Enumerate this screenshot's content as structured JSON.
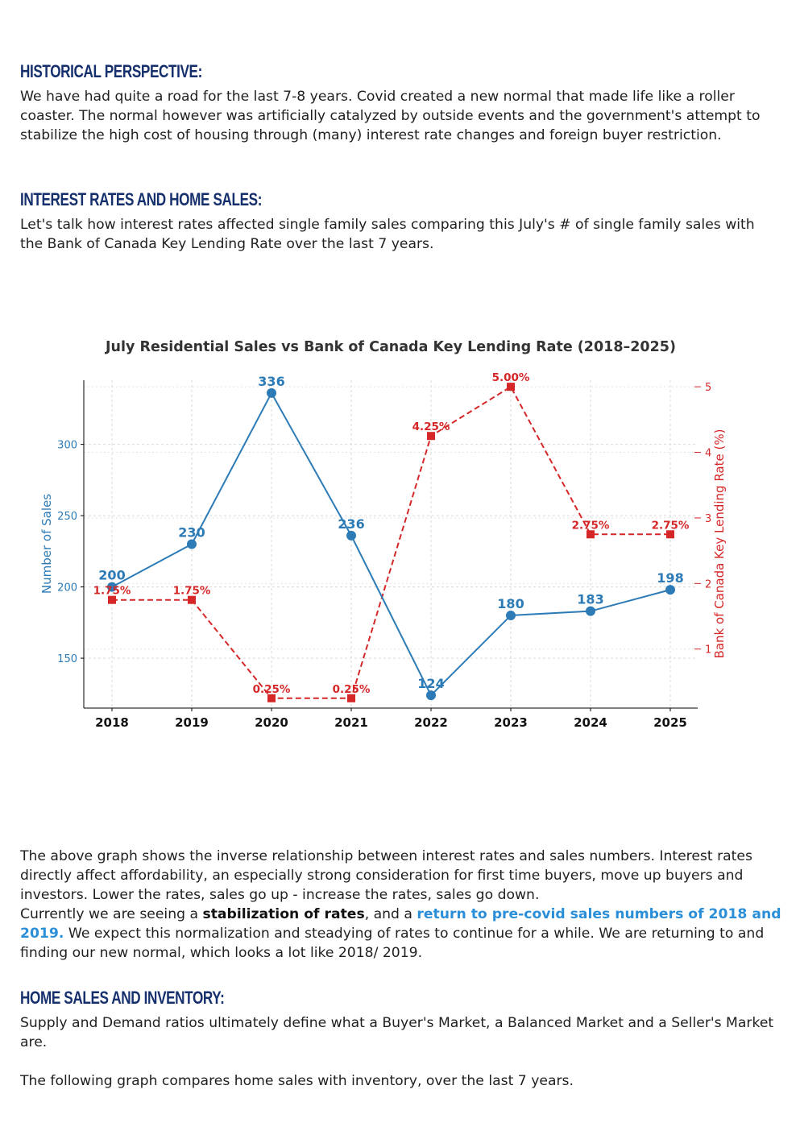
{
  "sections": {
    "historical": {
      "heading": "Historical Perspective:",
      "body": "We have had quite a road for the last 7-8 years. Covid created a new normal that made life like a roller coaster. The normal however was artificially catalyzed by outside events and the government's attempt to stabilize the high cost of housing through (many)  interest rate changes and foreign buyer restriction."
    },
    "rates": {
      "heading": "Interest Rates and Home Sales:",
      "body": "Let's talk how interest rates affected single family sales comparing this July's # of single family sales with the Bank of Canada Key Lending Rate over the last 7 years."
    },
    "analysis": {
      "line1": "The above graph shows the inverse relationship between interest rates and sales numbers. Interest rates directly affect affordability, an especially strong consideration for first time buyers, move up buyers and investors. Lower the rates, sales go up -  increase the rates, sales go down.",
      "line2_a": "Currently we are seeing a ",
      "line2_bold": "stabilization of rates",
      "line2_b": ", and a ",
      "line2_highlight": "return to pre-covid sales numbers of 2018 and 2019.",
      "line2_c": " We expect this normalization and steadying of rates to continue for a while. We are returning to and finding our new normal, which looks a lot like 2018/ 2019."
    },
    "inventory": {
      "heading": "Home Sales and Inventory:",
      "body1": "Supply and Demand ratios ultimately define what a Buyer's Market, a Balanced Market and a Seller's Market are.",
      "body2": "The following graph compares home sales with inventory, over the last 7 years."
    }
  },
  "colors": {
    "heading": "#16306e",
    "sales": "#2c7bb6",
    "rate": "#d62728",
    "highlight": "#2a8fd8"
  },
  "chart_data": {
    "type": "line",
    "title": "July Residential Sales vs Bank of Canada Key Lending Rate (2018–2025)",
    "categories": [
      "2018",
      "2019",
      "2020",
      "2021",
      "2022",
      "2023",
      "2024",
      "2025"
    ],
    "ylabel": "Number of Sales",
    "y2label": "Bank of Canada Key Lending Rate (%)",
    "ylim": [
      115,
      345
    ],
    "y2lim": [
      0.1,
      5.1
    ],
    "yticks": [
      150,
      200,
      250,
      300
    ],
    "y2ticks": [
      1,
      2,
      3,
      4,
      5
    ],
    "grid": true,
    "series": [
      {
        "axis": "left",
        "values": [
          200,
          230,
          336,
          236,
          124,
          180,
          183,
          198
        ],
        "labels": [
          "200",
          "230",
          "336",
          "236",
          "124",
          "180",
          "183",
          "198"
        ]
      },
      {
        "axis": "right",
        "values": [
          1.75,
          1.75,
          0.25,
          0.25,
          4.25,
          5.0,
          2.75,
          2.75
        ],
        "labels": [
          "1.75%",
          "1.75%",
          "0.25%",
          "0.25%",
          "4.25%",
          "5.00%",
          "2.75%",
          "2.75%"
        ]
      }
    ]
  }
}
